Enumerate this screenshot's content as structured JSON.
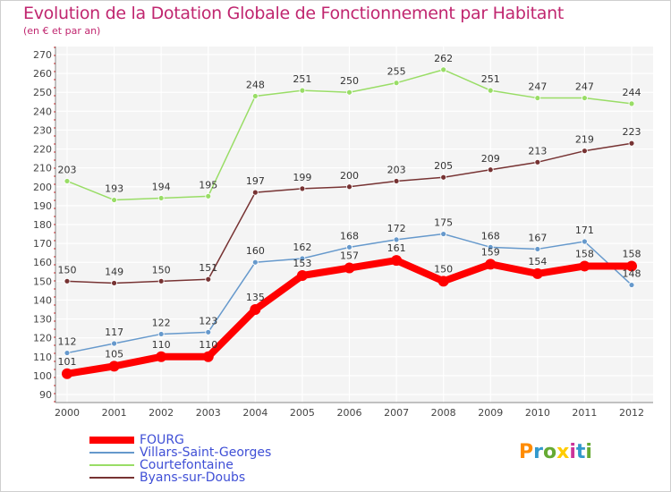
{
  "chart_data": {
    "type": "line",
    "title": "Evolution de la Dotation Globale de Fonctionnement par Habitant",
    "subtitle": "(en € et par an)",
    "xlabel": "",
    "ylabel": "",
    "x": [
      "2000",
      "2001",
      "2002",
      "2003",
      "2004",
      "2005",
      "2006",
      "2007",
      "2008",
      "2009",
      "2010",
      "2011",
      "2012"
    ],
    "ylim": [
      90,
      270
    ],
    "yticks": [
      90,
      100,
      110,
      120,
      130,
      140,
      150,
      160,
      170,
      180,
      190,
      200,
      210,
      220,
      230,
      240,
      250,
      260,
      270
    ],
    "grid": true,
    "legend_position": "bottom-left",
    "series": [
      {
        "name": "FOURG",
        "color": "#ff0000",
        "values": [
          101,
          105,
          110,
          110,
          135,
          153,
          157,
          161,
          150,
          159,
          154,
          158,
          158
        ]
      },
      {
        "name": "Villars-Saint-Georges",
        "color": "#6699cc",
        "values": [
          112,
          117,
          122,
          123,
          160,
          162,
          168,
          172,
          175,
          168,
          167,
          171,
          148
        ]
      },
      {
        "name": "Courtefontaine",
        "color": "#99dd66",
        "values": [
          203,
          193,
          194,
          195,
          248,
          251,
          250,
          255,
          262,
          251,
          247,
          247,
          244
        ]
      },
      {
        "name": "Byans-sur-Doubs",
        "color": "#773333",
        "values": [
          150,
          149,
          150,
          151,
          197,
          199,
          200,
          203,
          205,
          209,
          213,
          219,
          223
        ]
      }
    ]
  },
  "logo": {
    "letters": [
      "P",
      "r",
      "o",
      "x",
      "i",
      "t",
      "i"
    ],
    "colors": [
      "#ff8c00",
      "#3399cc",
      "#66aa33",
      "#ffcc00",
      "#cc3399",
      "#3399cc",
      "#66aa33"
    ]
  }
}
